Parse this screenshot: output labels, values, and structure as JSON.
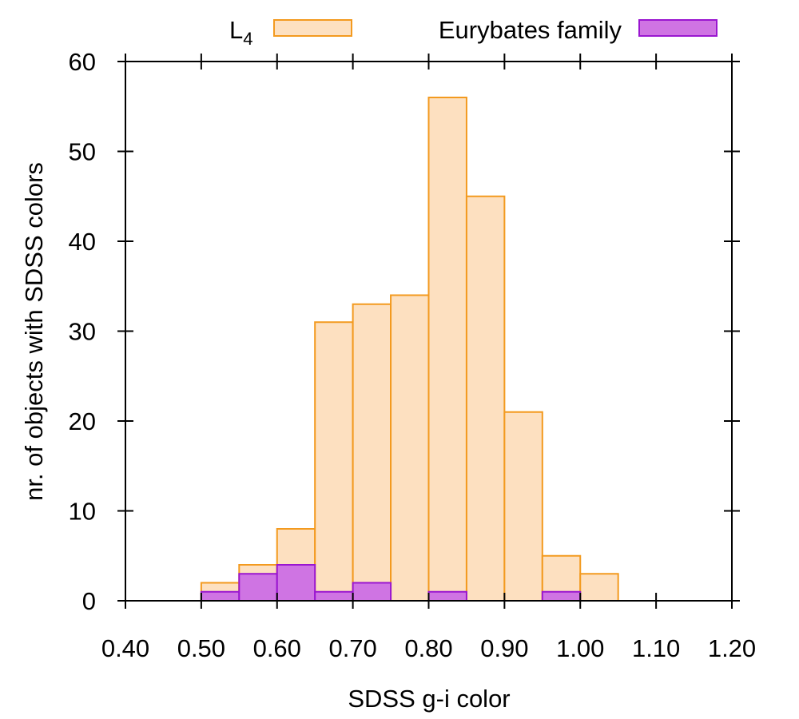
{
  "chart_data": {
    "type": "bar",
    "title": "",
    "xlabel": "SDSS g-i color",
    "ylabel": "nr. of objects with SDSS colors",
    "xlim": [
      0.4,
      1.2
    ],
    "ylim": [
      0,
      60
    ],
    "bin_width": 0.05,
    "x_ticks": [
      "0.40",
      "0.50",
      "0.60",
      "0.70",
      "0.80",
      "0.90",
      "1.00",
      "1.10",
      "1.20"
    ],
    "y_ticks": [
      "0",
      "10",
      "20",
      "30",
      "40",
      "50",
      "60"
    ],
    "grid": false,
    "legend_position": "top-outside",
    "series": [
      {
        "name": "L",
        "name_subscript": "4",
        "fill": "#fde0c0",
        "stroke": "#f39a1f",
        "bins": [
          0.5,
          0.55,
          0.6,
          0.65,
          0.7,
          0.75,
          0.8,
          0.85,
          0.9,
          0.95,
          1.0
        ],
        "values": [
          2,
          4,
          8,
          31,
          33,
          34,
          56,
          45,
          21,
          5,
          3
        ]
      },
      {
        "name": "Eurybates family",
        "fill": "#cf74e3",
        "stroke": "#9a16d0",
        "bins": [
          0.5,
          0.55,
          0.6,
          0.65,
          0.7,
          0.8,
          0.95
        ],
        "values": [
          1,
          3,
          4,
          1,
          2,
          1,
          1
        ]
      }
    ]
  }
}
